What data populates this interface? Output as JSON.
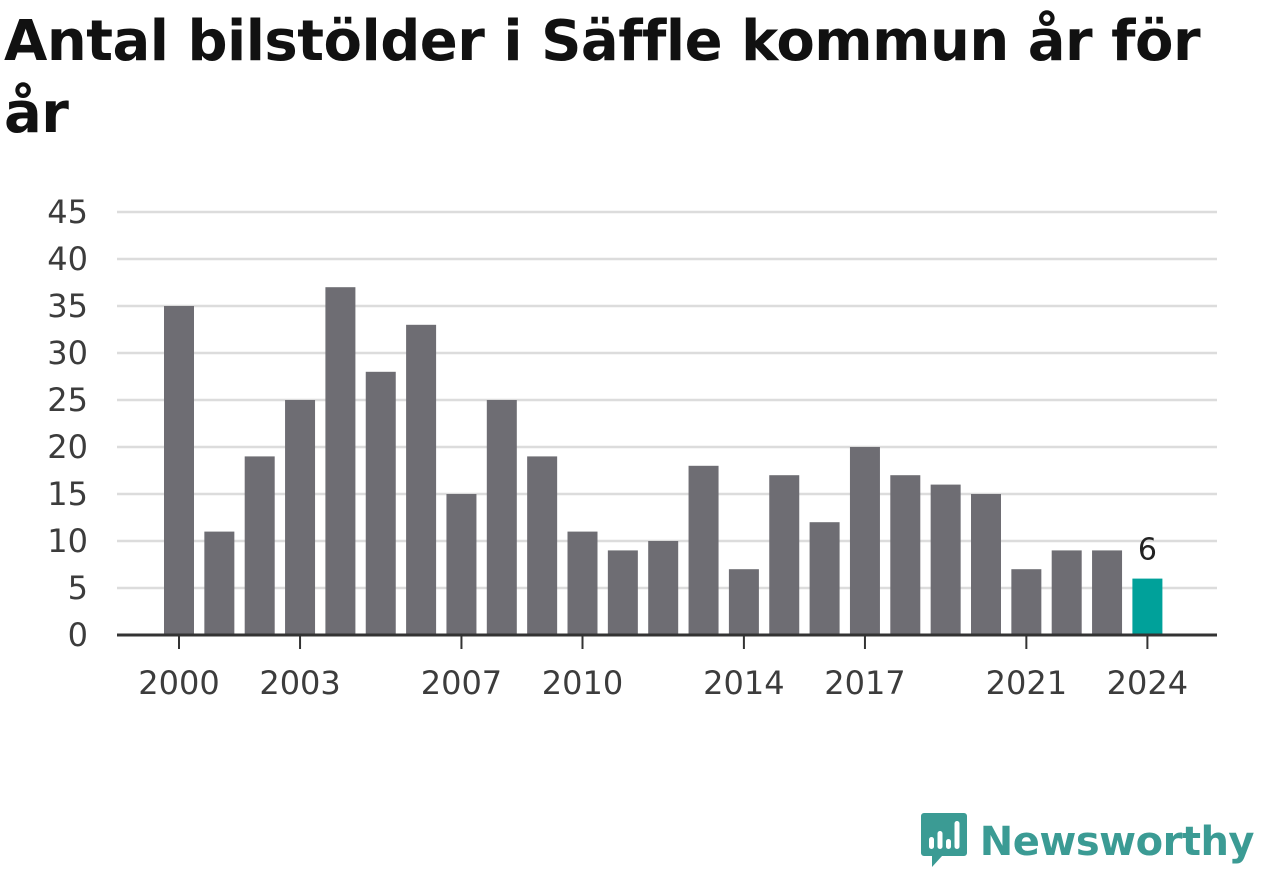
{
  "title": "Antal bilstölder i Säffle kommun år för år",
  "brand": {
    "name": "Newsworthy",
    "logo_icon": "newsworthy-logo-icon",
    "color": "#3b9b94"
  },
  "colors": {
    "bar": "#6e6d73",
    "highlight": "#00a19a",
    "grid": "#dcdcdc",
    "axis": "#333333"
  },
  "chart_data": {
    "type": "bar",
    "title": "Antal bilstölder i Säffle kommun år för år",
    "xlabel": "",
    "ylabel": "",
    "categories": [
      2000,
      2001,
      2002,
      2003,
      2004,
      2005,
      2006,
      2007,
      2008,
      2009,
      2010,
      2011,
      2012,
      2013,
      2014,
      2015,
      2016,
      2017,
      2018,
      2019,
      2020,
      2021,
      2022,
      2023,
      2024
    ],
    "values": [
      35,
      11,
      19,
      25,
      37,
      28,
      33,
      15,
      25,
      19,
      11,
      9,
      10,
      18,
      7,
      17,
      12,
      20,
      17,
      16,
      15,
      7,
      9,
      9,
      6
    ],
    "x_tick_labels": [
      "2000",
      "2003",
      "2007",
      "2010",
      "2014",
      "2017",
      "2021",
      "2024"
    ],
    "y_ticks": [
      0,
      5,
      10,
      15,
      20,
      25,
      30,
      35,
      40,
      45
    ],
    "ylim": [
      0,
      45
    ],
    "grid": true,
    "highlight": {
      "category": 2024,
      "label": "6"
    }
  }
}
